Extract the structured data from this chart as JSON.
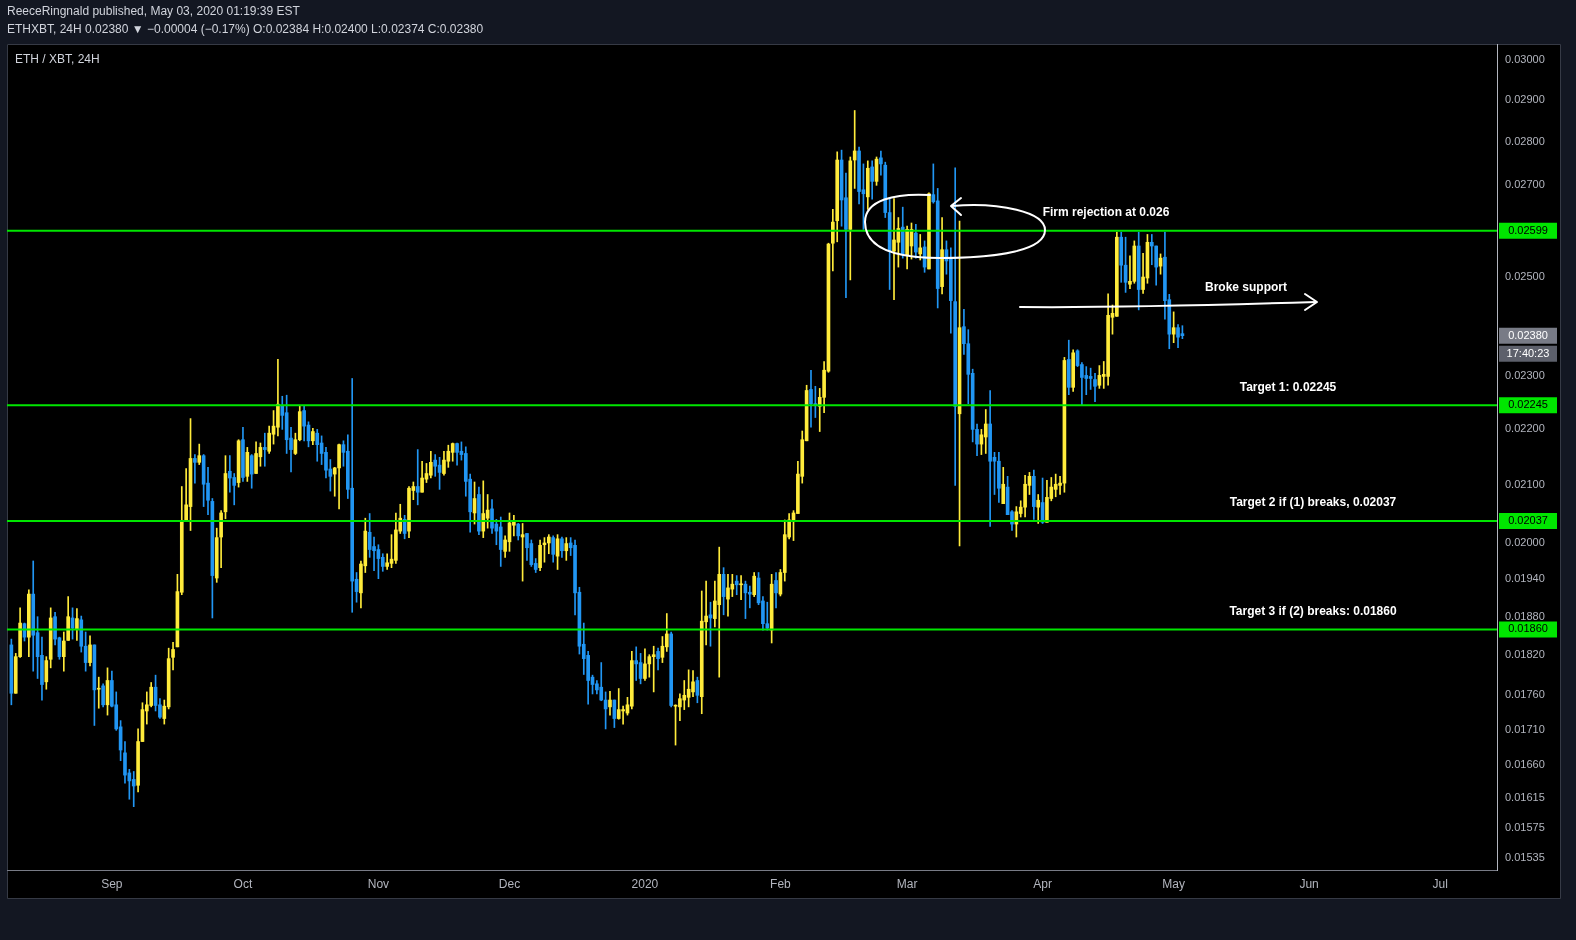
{
  "chart_data": {
    "type": "candlestick",
    "title": "ETH / XBT, 24H",
    "subtitle": "ETHXBT, 24H 0.02380 ▼ −0.00004 (−0.17%) O:0.02384 H:0.02400 L:0.02374 C:0.02380",
    "annotations": [
      "ReeceRingnald published, May 03, 2020 01:19:39 EST",
      "Firm rejection at 0.026",
      "Broke support",
      "Target 1: 0.02245",
      "Target 2 if (1) breaks, 0.02037",
      "Target 3 if (2) breaks: 0.01860",
      "0.02380",
      "17:40:23"
    ],
    "colors": [
      "#2196f3",
      "#ffeb3b",
      "#ffeb3b",
      "#2196f3",
      "#ffeb3b",
      "#2196f3",
      "#2196f3",
      "#2196f3",
      "#ffeb3b",
      "#ffeb3b",
      "#2196f3",
      "#2196f3",
      "#ffeb3b",
      "#ffeb3b",
      "#2196f3",
      "#ffeb3b",
      "#2196f3",
      "#2196f3",
      "#ffeb3b",
      "#2196f3",
      "#ffeb3b",
      "#2196f3",
      "#ffeb3b",
      "#2196f3",
      "#2196f3",
      "#2196f3",
      "#2196f3",
      "#2196f3",
      "#2196f3",
      "#ffeb3b",
      "#ffeb3b",
      "#ffeb3b",
      "#ffeb3b",
      "#2196f3",
      "#2196f3",
      "#ffeb3b",
      "#ffeb3b",
      "#ffeb3b",
      "#ffeb3b",
      "#ffeb3b",
      "#ffeb3b",
      "#ffeb3b",
      "#2196f3",
      "#ffeb3b",
      "#2196f3",
      "#2196f3",
      "#2196f3",
      "#ffeb3b",
      "#ffeb3b",
      "#ffeb3b",
      "#2196f3",
      "#2196f3",
      "#ffeb3b",
      "#2196f3",
      "#ffeb3b",
      "#2196f3",
      "#ffeb3b",
      "#ffeb3b",
      "#2196f3",
      "#ffeb3b",
      "#ffeb3b",
      "#ffeb3b",
      "#2196f3",
      "#2196f3",
      "#2196f3",
      "#ffeb3b",
      "#ffeb3b",
      "#2196f3",
      "#2196f3",
      "#ffeb3b",
      "#2196f3",
      "#2196f3",
      "#2196f3",
      "#2196f3",
      "#ffeb3b",
      "#ffeb3b",
      "#2196f3",
      "#2196f3",
      "#2196f3",
      "#2196f3",
      "#ffeb3b",
      "#ffeb3b",
      "#2196f3",
      "#2196f3",
      "#2196f3",
      "#2196f3",
      "#ffeb3b",
      "#ffeb3b",
      "#ffeb3b",
      "#ffeb3b",
      "#2196f3",
      "#ffeb3b",
      "#ffeb3b",
      "#2196f3",
      "#ffeb3b",
      "#ffeb3b",
      "#ffeb3b",
      "#2196f3",
      "#2196f3",
      "#ffeb3b",
      "#ffeb3b",
      "#ffeb3b",
      "#2196f3",
      "#2196f3",
      "#2196f3",
      "#2196f3",
      "#ffeb3b",
      "#2196f3",
      "#ffeb3b",
      "#ffeb3b",
      "#2196f3",
      "#2196f3",
      "#2196f3",
      "#ffeb3b",
      "#ffeb3b",
      "#ffeb3b",
      "#2196f3",
      "#ffeb3b",
      "#2196f3",
      "#2196f3",
      "#2196f3",
      "#ffeb3b",
      "#ffeb3b",
      "#ffeb3b",
      "#2196f3",
      "#ffeb3b",
      "#2196f3",
      "#ffeb3b",
      "#2196f3",
      "#2196f3",
      "#2196f3",
      "#2196f3",
      "#2196f3",
      "#2196f3",
      "#2196f3",
      "#2196f3",
      "#2196f3",
      "#ffeb3b",
      "#2196f3",
      "#ffeb3b",
      "#ffeb3b",
      "#ffeb3b",
      "#ffeb3b",
      "#2196f3",
      "#2196f3",
      "#ffeb3b",
      "#ffeb3b",
      "#ffeb3b",
      "#2196f3",
      "#ffeb3b",
      "#ffeb3b",
      "#2196f3",
      "#ffeb3b",
      "#ffeb3b",
      "#ffeb3b",
      "#ffeb3b",
      "#ffeb3b",
      "#2196f3",
      "#ffeb3b",
      "#ffeb3b",
      "#2196f3",
      "#ffeb3b",
      "#ffeb3b",
      "#2196f3",
      "#ffeb3b",
      "#ffeb3b",
      "#2196f3",
      "#ffeb3b",
      "#2196f3",
      "#2196f3",
      "#ffeb3b",
      "#2196f3",
      "#2196f3",
      "#2196f3",
      "#ffeb3b",
      "#2196f3",
      "#ffeb3b",
      "#ffeb3b",
      "#ffeb3b",
      "#ffeb3b",
      "#ffeb3b",
      "#ffeb3b",
      "#ffeb3b",
      "#2196f3",
      "#2196f3",
      "#ffeb3b",
      "#ffeb3b",
      "#ffeb3b",
      "#ffeb3b",
      "#ffeb3b",
      "#2196f3",
      "#2196f3",
      "#ffeb3b",
      "#ffeb3b",
      "#2196f3",
      "#2196f3",
      "#ffeb3b",
      "#2196f3",
      "#ffeb3b",
      "#2196f3",
      "#2196f3",
      "#2196f3",
      "#ffeb3b",
      "#ffeb3b",
      "#2196f3",
      "#ffeb3b",
      "#ffeb3b",
      "#2196f3",
      "#ffeb3b",
      "#2196f3",
      "#ffeb3b",
      "#2196f3",
      "#2196f3",
      "#ffeb3b",
      "#2196f3",
      "#2196f3",
      "#2196f3",
      "#ffeb3b",
      "#2196f3",
      "#2196f3",
      "#2196f3",
      "#2196f3",
      "#ffeb3b",
      "#ffeb3b",
      "#2196f3",
      "#2196f3",
      "#2196f3",
      "#ffeb3b",
      "#2196f3",
      "#2196f3",
      "#ffeb3b",
      "#ffeb3b",
      "#ffeb3b",
      "#ffeb3b",
      "#2196f3",
      "#ffeb3b",
      "#2196f3",
      "#ffeb3b",
      "#ffeb3b",
      "#ffeb3b",
      "#ffeb3b",
      "#ffeb3b",
      "#2196f3",
      "#ffeb3b",
      "#2196f3",
      "#2196f3",
      "#2196f3",
      "#2196f3",
      "#2196f3",
      "#ffeb3b",
      "#ffeb3b",
      "#ffeb3b",
      "#ffeb3b",
      "#ffeb3b",
      "#2196f3",
      "#2196f3",
      "#ffeb3b",
      "#ffeb3b",
      "#2196f3",
      "#ffeb3b",
      "#ffeb3b",
      "#2196f3",
      "#2196f3",
      "#ffeb3b",
      "#2196f3",
      "#2196f3",
      "#ffeb3b",
      "#2196f3",
      "#2196f3"
    ],
    "log": true,
    "grid": false,
    "xlim": [
      "2019-08-08",
      "2020-07-14"
    ],
    "xticks": [
      {
        "value": "2019-09-01",
        "label": "Sep"
      },
      {
        "value": "2019-10-01",
        "label": "Oct"
      },
      {
        "value": "2019-11-01",
        "label": "Nov"
      },
      {
        "value": "2019-12-01",
        "label": "Dec"
      },
      {
        "value": "2020-01-01",
        "label": "2020"
      },
      {
        "value": "2020-02-01",
        "label": "Feb"
      },
      {
        "value": "2020-03-01",
        "label": "Mar"
      },
      {
        "value": "2020-04-01",
        "label": "Apr"
      },
      {
        "value": "2020-05-01",
        "label": "May"
      },
      {
        "value": "2020-06-01",
        "label": "Jun"
      },
      {
        "value": "2020-07-01",
        "label": "Jul"
      }
    ],
    "ylim": [
      0.0152,
      0.0304
    ],
    "yticks": [
      {
        "value": 0.01535,
        "label": "0.01535"
      },
      {
        "value": 0.01575,
        "label": "0.01575"
      },
      {
        "value": 0.01615,
        "label": "0.01615"
      },
      {
        "value": 0.0166,
        "label": "0.01660"
      },
      {
        "value": 0.0171,
        "label": "0.01710"
      },
      {
        "value": 0.0176,
        "label": "0.01760"
      },
      {
        "value": 0.0182,
        "label": "0.01820"
      },
      {
        "value": 0.0188,
        "label": "0.01880"
      },
      {
        "value": 0.0194,
        "label": "0.01940"
      },
      {
        "value": 0.02,
        "label": "0.02000"
      },
      {
        "value": 0.021,
        "label": "0.02100"
      },
      {
        "value": 0.022,
        "label": "0.02200"
      },
      {
        "value": 0.023,
        "label": "0.02300"
      },
      {
        "value": 0.025,
        "label": "0.02500"
      },
      {
        "value": 0.027,
        "label": "0.02700"
      },
      {
        "value": 0.028,
        "label": "0.02800"
      },
      {
        "value": 0.029,
        "label": "0.02900"
      },
      {
        "value": 0.03,
        "label": "0.03000"
      }
    ],
    "ref_lines": [
      {
        "axis": "y",
        "value": 0.02599,
        "label": "0.02599",
        "color": "#00e600"
      },
      {
        "axis": "y",
        "value": 0.02245,
        "label": "0.02245",
        "color": "#00e600"
      },
      {
        "axis": "y",
        "value": 0.02037,
        "label": "0.02037",
        "color": "#00e600"
      },
      {
        "axis": "y",
        "value": 0.0186,
        "label": "0.01860",
        "color": "#00e600"
      }
    ],
    "x": [
      "2019-08-09",
      "2019-08-10",
      "2019-08-11",
      "2019-08-12",
      "2019-08-13",
      "2019-08-14",
      "2019-08-15",
      "2019-08-16",
      "2019-08-17",
      "2019-08-18",
      "2019-08-19",
      "2019-08-20",
      "2019-08-21",
      "2019-08-22",
      "2019-08-23",
      "2019-08-24",
      "2019-08-25",
      "2019-08-26",
      "2019-08-27",
      "2019-08-28",
      "2019-08-29",
      "2019-08-30",
      "2019-08-31",
      "2019-09-01",
      "2019-09-02",
      "2019-09-03",
      "2019-09-04",
      "2019-09-05",
      "2019-09-06",
      "2019-09-07",
      "2019-09-08",
      "2019-09-09",
      "2019-09-10",
      "2019-09-11",
      "2019-09-12",
      "2019-09-13",
      "2019-09-14",
      "2019-09-15",
      "2019-09-16",
      "2019-09-17",
      "2019-09-18",
      "2019-09-19",
      "2019-09-20",
      "2019-09-21",
      "2019-09-22",
      "2019-09-23",
      "2019-09-24",
      "2019-09-25",
      "2019-09-26",
      "2019-09-27",
      "2019-09-28",
      "2019-09-29",
      "2019-09-30",
      "2019-10-01",
      "2019-10-02",
      "2019-10-03",
      "2019-10-04",
      "2019-10-05",
      "2019-10-06",
      "2019-10-07",
      "2019-10-08",
      "2019-10-09",
      "2019-10-10",
      "2019-10-11",
      "2019-10-12",
      "2019-10-13",
      "2019-10-14",
      "2019-10-15",
      "2019-10-16",
      "2019-10-17",
      "2019-10-18",
      "2019-10-19",
      "2019-10-20",
      "2019-10-21",
      "2019-10-22",
      "2019-10-23",
      "2019-10-24",
      "2019-10-25",
      "2019-10-26",
      "2019-10-27",
      "2019-10-28",
      "2019-10-29",
      "2019-10-30",
      "2019-10-31",
      "2019-11-01",
      "2019-11-02",
      "2019-11-03",
      "2019-11-04",
      "2019-11-05",
      "2019-11-06",
      "2019-11-07",
      "2019-11-08",
      "2019-11-09",
      "2019-11-10",
      "2019-11-11",
      "2019-11-12",
      "2019-11-13",
      "2019-11-14",
      "2019-11-15",
      "2019-11-16",
      "2019-11-17",
      "2019-11-18",
      "2019-11-19",
      "2019-11-20",
      "2019-11-21",
      "2019-11-22",
      "2019-11-23",
      "2019-11-24",
      "2019-11-25",
      "2019-11-26",
      "2019-11-27",
      "2019-11-28",
      "2019-11-29",
      "2019-11-30",
      "2019-12-01",
      "2019-12-02",
      "2019-12-03",
      "2019-12-04",
      "2019-12-05",
      "2019-12-06",
      "2019-12-07",
      "2019-12-08",
      "2019-12-09",
      "2019-12-10",
      "2019-12-11",
      "2019-12-12",
      "2019-12-13",
      "2019-12-14",
      "2019-12-15",
      "2019-12-16",
      "2019-12-17",
      "2019-12-18",
      "2019-12-19",
      "2019-12-20",
      "2019-12-21",
      "2019-12-22",
      "2019-12-23",
      "2019-12-24",
      "2019-12-25",
      "2019-12-26",
      "2019-12-27",
      "2019-12-28",
      "2019-12-29",
      "2019-12-30",
      "2019-12-31",
      "2020-01-01",
      "2020-01-02",
      "2020-01-03",
      "2020-01-04",
      "2020-01-05",
      "2020-01-06",
      "2020-01-07",
      "2020-01-08",
      "2020-01-09",
      "2020-01-10",
      "2020-01-11",
      "2020-01-12",
      "2020-01-13",
      "2020-01-14",
      "2020-01-15",
      "2020-01-16",
      "2020-01-17",
      "2020-01-18",
      "2020-01-19",
      "2020-01-20",
      "2020-01-21",
      "2020-01-22",
      "2020-01-23",
      "2020-01-24",
      "2020-01-25",
      "2020-01-26",
      "2020-01-27",
      "2020-01-28",
      "2020-01-29",
      "2020-01-30",
      "2020-01-31",
      "2020-02-01",
      "2020-02-02",
      "2020-02-03",
      "2020-02-04",
      "2020-02-05",
      "2020-02-06",
      "2020-02-07",
      "2020-02-08",
      "2020-02-09",
      "2020-02-10",
      "2020-02-11",
      "2020-02-12",
      "2020-02-13",
      "2020-02-14",
      "2020-02-15",
      "2020-02-16",
      "2020-02-17",
      "2020-02-18",
      "2020-02-19",
      "2020-02-20",
      "2020-02-21",
      "2020-02-22",
      "2020-02-23",
      "2020-02-24",
      "2020-02-25",
      "2020-02-26",
      "2020-02-27",
      "2020-02-28",
      "2020-02-29",
      "2020-03-01",
      "2020-03-02",
      "2020-03-03",
      "2020-03-04",
      "2020-03-05",
      "2020-03-06",
      "2020-03-07",
      "2020-03-08",
      "2020-03-09",
      "2020-03-10",
      "2020-03-11",
      "2020-03-12",
      "2020-03-13",
      "2020-03-14",
      "2020-03-15",
      "2020-03-16",
      "2020-03-17",
      "2020-03-18",
      "2020-03-19",
      "2020-03-20",
      "2020-03-21",
      "2020-03-22",
      "2020-03-23",
      "2020-03-24",
      "2020-03-25",
      "2020-03-26",
      "2020-03-27",
      "2020-03-28",
      "2020-03-29",
      "2020-03-30",
      "2020-03-31",
      "2020-04-01",
      "2020-04-02",
      "2020-04-03",
      "2020-04-04",
      "2020-04-05",
      "2020-04-06",
      "2020-04-07",
      "2020-04-08",
      "2020-04-09",
      "2020-04-10",
      "2020-04-11",
      "2020-04-12",
      "2020-04-13",
      "2020-04-14",
      "2020-04-15",
      "2020-04-16",
      "2020-04-17",
      "2020-04-18",
      "2020-04-19",
      "2020-04-20",
      "2020-04-21",
      "2020-04-22",
      "2020-04-23",
      "2020-04-24",
      "2020-04-25",
      "2020-04-26",
      "2020-04-27",
      "2020-04-28",
      "2020-04-29",
      "2020-04-30",
      "2020-05-01",
      "2020-05-02",
      "2020-05-03"
    ],
    "ohlc": [
      [
        0.01836,
        0.01845,
        0.01746,
        0.01763
      ],
      [
        0.01763,
        0.01823,
        0.01763,
        0.01818
      ],
      [
        0.01818,
        0.01894,
        0.01817,
        0.0187
      ],
      [
        0.01869,
        0.0187,
        0.01842,
        0.01848
      ],
      [
        0.01848,
        0.01923,
        0.01818,
        0.01916
      ],
      [
        0.01916,
        0.0197,
        0.01796,
        0.01851
      ],
      [
        0.01855,
        0.0188,
        0.01785,
        0.01818
      ],
      [
        0.0182,
        0.01848,
        0.01753,
        0.01776
      ],
      [
        0.0178,
        0.01818,
        0.01769,
        0.01812
      ],
      [
        0.01814,
        0.01894,
        0.01801,
        0.01878
      ],
      [
        0.0188,
        0.01887,
        0.01836,
        0.01845
      ],
      [
        0.01847,
        0.01848,
        0.01814,
        0.01818
      ],
      [
        0.01818,
        0.01856,
        0.01796,
        0.01842
      ],
      [
        0.01843,
        0.01912,
        0.01843,
        0.0188
      ],
      [
        0.01878,
        0.01894,
        0.01845,
        0.01862
      ],
      [
        0.01861,
        0.01893,
        0.01843,
        0.01877
      ],
      [
        0.01875,
        0.01881,
        0.01825,
        0.01834
      ],
      [
        0.01834,
        0.01856,
        0.01796,
        0.01809
      ],
      [
        0.01809,
        0.0185,
        0.01804,
        0.01836
      ],
      [
        0.01836,
        0.01836,
        0.01716,
        0.01768
      ],
      [
        0.01769,
        0.01787,
        0.01741,
        0.0177
      ],
      [
        0.01774,
        0.01777,
        0.01743,
        0.01746
      ],
      [
        0.01746,
        0.01801,
        0.01731,
        0.01782
      ],
      [
        0.01782,
        0.01796,
        0.01743,
        0.01744
      ],
      [
        0.01746,
        0.01765,
        0.01709,
        0.01711
      ],
      [
        0.01714,
        0.01723,
        0.01666,
        0.01681
      ],
      [
        0.01677,
        0.01693,
        0.01635,
        0.01646
      ],
      [
        0.01649,
        0.01654,
        0.01613,
        0.01638
      ],
      [
        0.0164,
        0.01651,
        0.01603,
        0.01631
      ],
      [
        0.01632,
        0.01711,
        0.01623,
        0.01693
      ],
      [
        0.01693,
        0.01749,
        0.01693,
        0.01739
      ],
      [
        0.01737,
        0.01765,
        0.01718,
        0.01746
      ],
      [
        0.01745,
        0.01779,
        0.01743,
        0.01772
      ],
      [
        0.01772,
        0.0179,
        0.01737,
        0.01745
      ],
      [
        0.01746,
        0.01755,
        0.01726,
        0.01728
      ],
      [
        0.01726,
        0.01753,
        0.01718,
        0.01744
      ],
      [
        0.01743,
        0.01831,
        0.0174,
        0.01815
      ],
      [
        0.01817,
        0.0184,
        0.01798,
        0.01829
      ],
      [
        0.01833,
        0.01948,
        0.01833,
        0.0192
      ],
      [
        0.01919,
        0.02097,
        0.01915,
        0.02035
      ],
      [
        0.02039,
        0.02129,
        0.02039,
        0.02065
      ],
      [
        0.02062,
        0.0222,
        0.02021,
        0.02147
      ],
      [
        0.02147,
        0.02154,
        0.02103,
        0.0214
      ],
      [
        0.0214,
        0.02173,
        0.02136,
        0.02152
      ],
      [
        0.02152,
        0.02154,
        0.02062,
        0.02101
      ],
      [
        0.02103,
        0.02131,
        0.02048,
        0.02073
      ],
      [
        0.02071,
        0.02076,
        0.01878,
        0.01946
      ],
      [
        0.01942,
        0.02025,
        0.01935,
        0.02009
      ],
      [
        0.0201,
        0.02055,
        0.01959,
        0.02051
      ],
      [
        0.02053,
        0.02152,
        0.02041,
        0.0212
      ],
      [
        0.02124,
        0.02152,
        0.02087,
        0.02112
      ],
      [
        0.02113,
        0.0212,
        0.02065,
        0.02099
      ],
      [
        0.02104,
        0.02181,
        0.02096,
        0.02179
      ],
      [
        0.02181,
        0.02204,
        0.02106,
        0.02113
      ],
      [
        0.02115,
        0.02167,
        0.02106,
        0.02158
      ],
      [
        0.02152,
        0.02154,
        0.02094,
        0.02119
      ],
      [
        0.0212,
        0.02177,
        0.0212,
        0.02156
      ],
      [
        0.0215,
        0.02175,
        0.02133,
        0.02167
      ],
      [
        0.02167,
        0.02193,
        0.02133,
        0.02163
      ],
      [
        0.0216,
        0.02206,
        0.02156,
        0.02193
      ],
      [
        0.02191,
        0.02235,
        0.02173,
        0.02206
      ],
      [
        0.02204,
        0.02333,
        0.02188,
        0.02247
      ],
      [
        0.02245,
        0.02262,
        0.022,
        0.02226
      ],
      [
        0.02231,
        0.02264,
        0.02156,
        0.02181
      ],
      [
        0.02184,
        0.02204,
        0.02123,
        0.02163
      ],
      [
        0.02156,
        0.02193,
        0.02154,
        0.02181
      ],
      [
        0.02181,
        0.02243,
        0.02179,
        0.02233
      ],
      [
        0.02235,
        0.02245,
        0.02179,
        0.02206
      ],
      [
        0.02208,
        0.02214,
        0.02168,
        0.02179
      ],
      [
        0.02179,
        0.02202,
        0.02172,
        0.02196
      ],
      [
        0.02193,
        0.022,
        0.02142,
        0.02172
      ],
      [
        0.02175,
        0.02188,
        0.02136,
        0.02156
      ],
      [
        0.02158,
        0.02167,
        0.02112,
        0.02126
      ],
      [
        0.02128,
        0.02145,
        0.02089,
        0.02115
      ],
      [
        0.02119,
        0.02131,
        0.0208,
        0.0213
      ],
      [
        0.0213,
        0.02173,
        0.02058,
        0.02172
      ],
      [
        0.02172,
        0.02179,
        0.02133,
        0.02158
      ],
      [
        0.0216,
        0.0219,
        0.02076,
        0.02092
      ],
      [
        0.02094,
        0.02296,
        0.01887,
        0.01937
      ],
      [
        0.0194,
        0.01951,
        0.01903,
        0.0192
      ],
      [
        0.01918,
        0.0197,
        0.01894,
        0.01965
      ],
      [
        0.01962,
        0.02042,
        0.01951,
        0.0202
      ],
      [
        0.02018,
        0.0205,
        0.01976,
        0.01989
      ],
      [
        0.01994,
        0.0201,
        0.01954,
        0.01987
      ],
      [
        0.01989,
        0.01997,
        0.01941,
        0.01974
      ],
      [
        0.01976,
        0.01982,
        0.01953,
        0.01961
      ],
      [
        0.01961,
        0.01982,
        0.01956,
        0.01967
      ],
      [
        0.01966,
        0.02014,
        0.01959,
        0.01973
      ],
      [
        0.01971,
        0.02051,
        0.01966,
        0.02022
      ],
      [
        0.0202,
        0.02066,
        0.02016,
        0.02042
      ],
      [
        0.0204,
        0.02047,
        0.02007,
        0.02016
      ],
      [
        0.0202,
        0.02097,
        0.02009,
        0.02094
      ],
      [
        0.0209,
        0.02105,
        0.02074,
        0.02097
      ],
      [
        0.02097,
        0.02163,
        0.02065,
        0.02087
      ],
      [
        0.02087,
        0.02142,
        0.02087,
        0.02112
      ],
      [
        0.0211,
        0.02138,
        0.02104,
        0.0212
      ],
      [
        0.02117,
        0.0216,
        0.02112,
        0.0214
      ],
      [
        0.02144,
        0.02154,
        0.02115,
        0.02133
      ],
      [
        0.02135,
        0.02149,
        0.02092,
        0.02122
      ],
      [
        0.0212,
        0.0216,
        0.02117,
        0.02144
      ],
      [
        0.02142,
        0.02171,
        0.02131,
        0.0216
      ],
      [
        0.02158,
        0.02175,
        0.02142,
        0.02174
      ],
      [
        0.02174,
        0.02175,
        0.02135,
        0.02158
      ],
      [
        0.0216,
        0.02177,
        0.02144,
        0.02154
      ],
      [
        0.02156,
        0.02168,
        0.0208,
        0.02106
      ],
      [
        0.0211,
        0.02119,
        0.02018,
        0.02053
      ],
      [
        0.02051,
        0.02105,
        0.02032,
        0.02076
      ],
      [
        0.02083,
        0.02096,
        0.02014,
        0.0202
      ],
      [
        0.0202,
        0.02107,
        0.02009,
        0.0205
      ],
      [
        0.02042,
        0.02083,
        0.02025,
        0.02056
      ],
      [
        0.02058,
        0.02074,
        0.02016,
        0.02025
      ],
      [
        0.02032,
        0.0204,
        0.01997,
        0.0202
      ],
      [
        0.02027,
        0.02044,
        0.01961,
        0.01989
      ],
      [
        0.01986,
        0.02012,
        0.01976,
        0.02005
      ],
      [
        0.02002,
        0.02051,
        0.01986,
        0.02034
      ],
      [
        0.0203,
        0.02047,
        0.02012,
        0.02035
      ],
      [
        0.02032,
        0.02033,
        0.02005,
        0.02012
      ],
      [
        0.0201,
        0.02033,
        0.01937,
        0.02014
      ],
      [
        0.02016,
        0.02016,
        0.01971,
        0.01992
      ],
      [
        0.01999,
        0.02005,
        0.01961,
        0.01964
      ],
      [
        0.01966,
        0.01974,
        0.01951,
        0.01956
      ],
      [
        0.01959,
        0.02005,
        0.01954,
        0.01996
      ],
      [
        0.01997,
        0.02009,
        0.01968,
        0.02
      ],
      [
        0.02,
        0.02014,
        0.01982,
        0.0201
      ],
      [
        0.02009,
        0.02012,
        0.01968,
        0.01981
      ],
      [
        0.01978,
        0.02014,
        0.01956,
        0.02007
      ],
      [
        0.02007,
        0.0201,
        0.01976,
        0.01987
      ],
      [
        0.01987,
        0.02009,
        0.01971,
        0.01999
      ],
      [
        0.02,
        0.02009,
        0.01979,
        0.01992
      ],
      [
        0.01996,
        0.02005,
        0.01883,
        0.01918
      ],
      [
        0.01919,
        0.01927,
        0.01822,
        0.01834
      ],
      [
        0.01837,
        0.0187,
        0.01791,
        0.01815
      ],
      [
        0.0182,
        0.01826,
        0.01747,
        0.01782
      ],
      [
        0.01787,
        0.0179,
        0.01762,
        0.01776
      ],
      [
        0.01777,
        0.01782,
        0.01762,
        0.01768
      ],
      [
        0.01772,
        0.01809,
        0.01752,
        0.01753
      ],
      [
        0.01753,
        0.01765,
        0.01711,
        0.0174
      ],
      [
        0.01743,
        0.01766,
        0.01731,
        0.01753
      ],
      [
        0.01753,
        0.01753,
        0.01713,
        0.01726
      ],
      [
        0.01726,
        0.0177,
        0.01725,
        0.01739
      ],
      [
        0.01737,
        0.01744,
        0.01718,
        0.01739
      ],
      [
        0.01734,
        0.01757,
        0.01731,
        0.01746
      ],
      [
        0.01744,
        0.01826,
        0.0174,
        0.01812
      ],
      [
        0.01812,
        0.01833,
        0.01782,
        0.01807
      ],
      [
        0.01809,
        0.01823,
        0.01777,
        0.01785
      ],
      [
        0.01785,
        0.0183,
        0.01782,
        0.01807
      ],
      [
        0.01807,
        0.01821,
        0.01787,
        0.01818
      ],
      [
        0.01818,
        0.01834,
        0.01765,
        0.01821
      ],
      [
        0.01826,
        0.01831,
        0.01798,
        0.01815
      ],
      [
        0.01817,
        0.01849,
        0.01809,
        0.01834
      ],
      [
        0.01833,
        0.01885,
        0.01826,
        0.01853
      ],
      [
        0.01853,
        0.01856,
        0.01743,
        0.01745
      ],
      [
        0.01744,
        0.01746,
        0.01688,
        0.01745
      ],
      [
        0.01743,
        0.01762,
        0.01723,
        0.01755
      ],
      [
        0.01753,
        0.01782,
        0.01739,
        0.0176
      ],
      [
        0.01757,
        0.01798,
        0.01743,
        0.01769
      ],
      [
        0.01765,
        0.01797,
        0.01758,
        0.0178
      ],
      [
        0.01782,
        0.01787,
        0.01749,
        0.0176
      ],
      [
        0.01758,
        0.01921,
        0.01733,
        0.01873
      ],
      [
        0.01872,
        0.01937,
        0.01836,
        0.01881
      ],
      [
        0.01883,
        0.01903,
        0.01834,
        0.01878
      ],
      [
        0.01877,
        0.01937,
        0.01864,
        0.01905
      ],
      [
        0.01899,
        0.01993,
        0.01787,
        0.01948
      ],
      [
        0.01948,
        0.01959,
        0.01883,
        0.01912
      ],
      [
        0.01908,
        0.01948,
        0.01881,
        0.01926
      ],
      [
        0.01924,
        0.01948,
        0.01912,
        0.01932
      ],
      [
        0.01937,
        0.01946,
        0.01915,
        0.01931
      ],
      [
        0.01931,
        0.01946,
        0.01907,
        0.01932
      ],
      [
        0.01932,
        0.01937,
        0.01877,
        0.01918
      ],
      [
        0.01919,
        0.01929,
        0.01894,
        0.01916
      ],
      [
        0.01915,
        0.01951,
        0.01912,
        0.01945
      ],
      [
        0.01942,
        0.01951,
        0.01899,
        0.01902
      ],
      [
        0.01905,
        0.01912,
        0.01859,
        0.01869
      ],
      [
        0.01869,
        0.01903,
        0.01859,
        0.01862
      ],
      [
        0.01859,
        0.01948,
        0.01839,
        0.01932
      ],
      [
        0.01938,
        0.01951,
        0.01894,
        0.01918
      ],
      [
        0.01916,
        0.01956,
        0.01913,
        0.01951
      ],
      [
        0.01951,
        0.02039,
        0.01937,
        0.02014
      ],
      [
        0.0201,
        0.0205,
        0.02007,
        0.02039
      ],
      [
        0.02037,
        0.02055,
        0.02004,
        0.02051
      ],
      [
        0.0205,
        0.02142,
        0.0205,
        0.02119
      ],
      [
        0.02115,
        0.02197,
        0.02103,
        0.02181
      ],
      [
        0.02179,
        0.02283,
        0.02179,
        0.02273
      ],
      [
        0.02275,
        0.02312,
        0.02204,
        0.02248
      ],
      [
        0.02248,
        0.02281,
        0.02222,
        0.02246
      ],
      [
        0.02243,
        0.02277,
        0.02196,
        0.0226
      ],
      [
        0.0226,
        0.02329,
        0.02231,
        0.02312
      ],
      [
        0.0231,
        0.02572,
        0.02308,
        0.0257
      ],
      [
        0.02572,
        0.02646,
        0.02513,
        0.02618
      ],
      [
        0.02621,
        0.02777,
        0.02575,
        0.02758
      ],
      [
        0.02758,
        0.02781,
        0.02609,
        0.02667
      ],
      [
        0.02672,
        0.02728,
        0.02457,
        0.02602
      ],
      [
        0.02602,
        0.02765,
        0.02494,
        0.02756
      ],
      [
        0.02758,
        0.02875,
        0.02693,
        0.02779
      ],
      [
        0.02779,
        0.02788,
        0.02658,
        0.02686
      ],
      [
        0.0269,
        0.02749,
        0.02602,
        0.02681
      ],
      [
        0.02674,
        0.02756,
        0.02646,
        0.02739
      ],
      [
        0.02742,
        0.02756,
        0.02669,
        0.02709
      ],
      [
        0.02709,
        0.02765,
        0.027,
        0.0276
      ],
      [
        0.02763,
        0.02779,
        0.02723,
        0.02749
      ],
      [
        0.02746,
        0.02753,
        0.02628,
        0.02639
      ],
      [
        0.02639,
        0.02672,
        0.02474,
        0.02555
      ],
      [
        0.02555,
        0.0267,
        0.02453,
        0.02579
      ],
      [
        0.02574,
        0.02628,
        0.02521,
        0.02604
      ],
      [
        0.02607,
        0.02651,
        0.0254,
        0.02549
      ],
      [
        0.02547,
        0.02609,
        0.02517,
        0.02602
      ],
      [
        0.02566,
        0.02616,
        0.02538,
        0.02602
      ],
      [
        0.02594,
        0.02613,
        0.0254,
        0.02553
      ],
      [
        0.02549,
        0.02591,
        0.02536,
        0.02562
      ],
      [
        0.02564,
        0.02577,
        0.0251,
        0.02521
      ],
      [
        0.02517,
        0.02683,
        0.02517,
        0.02681
      ],
      [
        0.02679,
        0.02749,
        0.0266,
        0.02663
      ],
      [
        0.02665,
        0.02693,
        0.02436,
        0.02476
      ],
      [
        0.0248,
        0.02628,
        0.02465,
        0.02558
      ],
      [
        0.02558,
        0.02577,
        0.02506,
        0.02534
      ],
      [
        0.02541,
        0.02562,
        0.02385,
        0.02451
      ],
      [
        0.02449,
        0.0274,
        0.02099,
        0.02243
      ],
      [
        0.02229,
        0.0262,
        0.01995,
        0.02396
      ],
      [
        0.02398,
        0.02433,
        0.02343,
        0.02364
      ],
      [
        0.02364,
        0.02392,
        0.02248,
        0.02304
      ],
      [
        0.02306,
        0.02314,
        0.02177,
        0.022
      ],
      [
        0.022,
        0.0221,
        0.02152,
        0.02173
      ],
      [
        0.02173,
        0.022,
        0.02154,
        0.0219
      ],
      [
        0.02186,
        0.02237,
        0.02156,
        0.0221
      ],
      [
        0.0221,
        0.02273,
        0.02028,
        0.02142
      ],
      [
        0.02149,
        0.02158,
        0.02083,
        0.02142
      ],
      [
        0.02142,
        0.02158,
        0.02069,
        0.02094
      ],
      [
        0.02067,
        0.02131,
        0.02067,
        0.02101
      ],
      [
        0.02096,
        0.02115,
        0.02048,
        0.02048
      ],
      [
        0.02053,
        0.02055,
        0.02021,
        0.02032
      ],
      [
        0.02032,
        0.02062,
        0.0201,
        0.02053
      ],
      [
        0.0205,
        0.02072,
        0.02044,
        0.02061
      ],
      [
        0.02061,
        0.02117,
        0.02044,
        0.02101
      ],
      [
        0.02099,
        0.02122,
        0.02083,
        0.02115
      ],
      [
        0.02115,
        0.02126,
        0.0204,
        0.02062
      ],
      [
        0.02061,
        0.02083,
        0.02033,
        0.02073
      ],
      [
        0.02069,
        0.02112,
        0.02033,
        0.02035
      ],
      [
        0.02035,
        0.02108,
        0.02035,
        0.02078
      ],
      [
        0.02076,
        0.02113,
        0.02072,
        0.02096
      ],
      [
        0.02092,
        0.02119,
        0.02079,
        0.02101
      ],
      [
        0.02099,
        0.02115,
        0.02083,
        0.02103
      ],
      [
        0.02103,
        0.02337,
        0.02087,
        0.02331
      ],
      [
        0.02333,
        0.02371,
        0.02265,
        0.02279
      ],
      [
        0.02279,
        0.02352,
        0.02271,
        0.02346
      ],
      [
        0.0235,
        0.02352,
        0.02319,
        0.02321
      ],
      [
        0.02323,
        0.02327,
        0.02245,
        0.02298
      ],
      [
        0.02302,
        0.02319,
        0.02265,
        0.02296
      ],
      [
        0.023,
        0.02316,
        0.02275,
        0.02296
      ],
      [
        0.02294,
        0.02306,
        0.02252,
        0.02281
      ],
      [
        0.02283,
        0.02321,
        0.02277,
        0.02302
      ],
      [
        0.023,
        0.02329,
        0.02277,
        0.02304
      ],
      [
        0.023,
        0.02465,
        0.02283,
        0.02421
      ],
      [
        0.02417,
        0.02442,
        0.02383,
        0.02425
      ],
      [
        0.02419,
        0.02596,
        0.02419,
        0.02585
      ],
      [
        0.02585,
        0.02596,
        0.02489,
        0.02525
      ],
      [
        0.02525,
        0.02585,
        0.02468,
        0.02489
      ],
      [
        0.02485,
        0.02545,
        0.02476,
        0.02491
      ],
      [
        0.02491,
        0.02577,
        0.02487,
        0.02566
      ],
      [
        0.02566,
        0.02596,
        0.02432,
        0.02474
      ],
      [
        0.02474,
        0.0255,
        0.02466,
        0.025
      ],
      [
        0.02498,
        0.02591,
        0.02487,
        0.02574
      ],
      [
        0.02574,
        0.02591,
        0.02526,
        0.02566
      ],
      [
        0.02566,
        0.02566,
        0.02483,
        0.02521
      ],
      [
        0.02523,
        0.02549,
        0.02506,
        0.0254
      ],
      [
        0.02542,
        0.02596,
        0.02413,
        0.02451
      ],
      [
        0.02453,
        0.02464,
        0.02354,
        0.02383
      ],
      [
        0.02383,
        0.02428,
        0.02366,
        0.02396
      ],
      [
        0.02396,
        0.02402,
        0.02356,
        0.02377
      ],
      [
        0.02384,
        0.024,
        0.02374,
        0.0238
      ]
    ]
  }
}
